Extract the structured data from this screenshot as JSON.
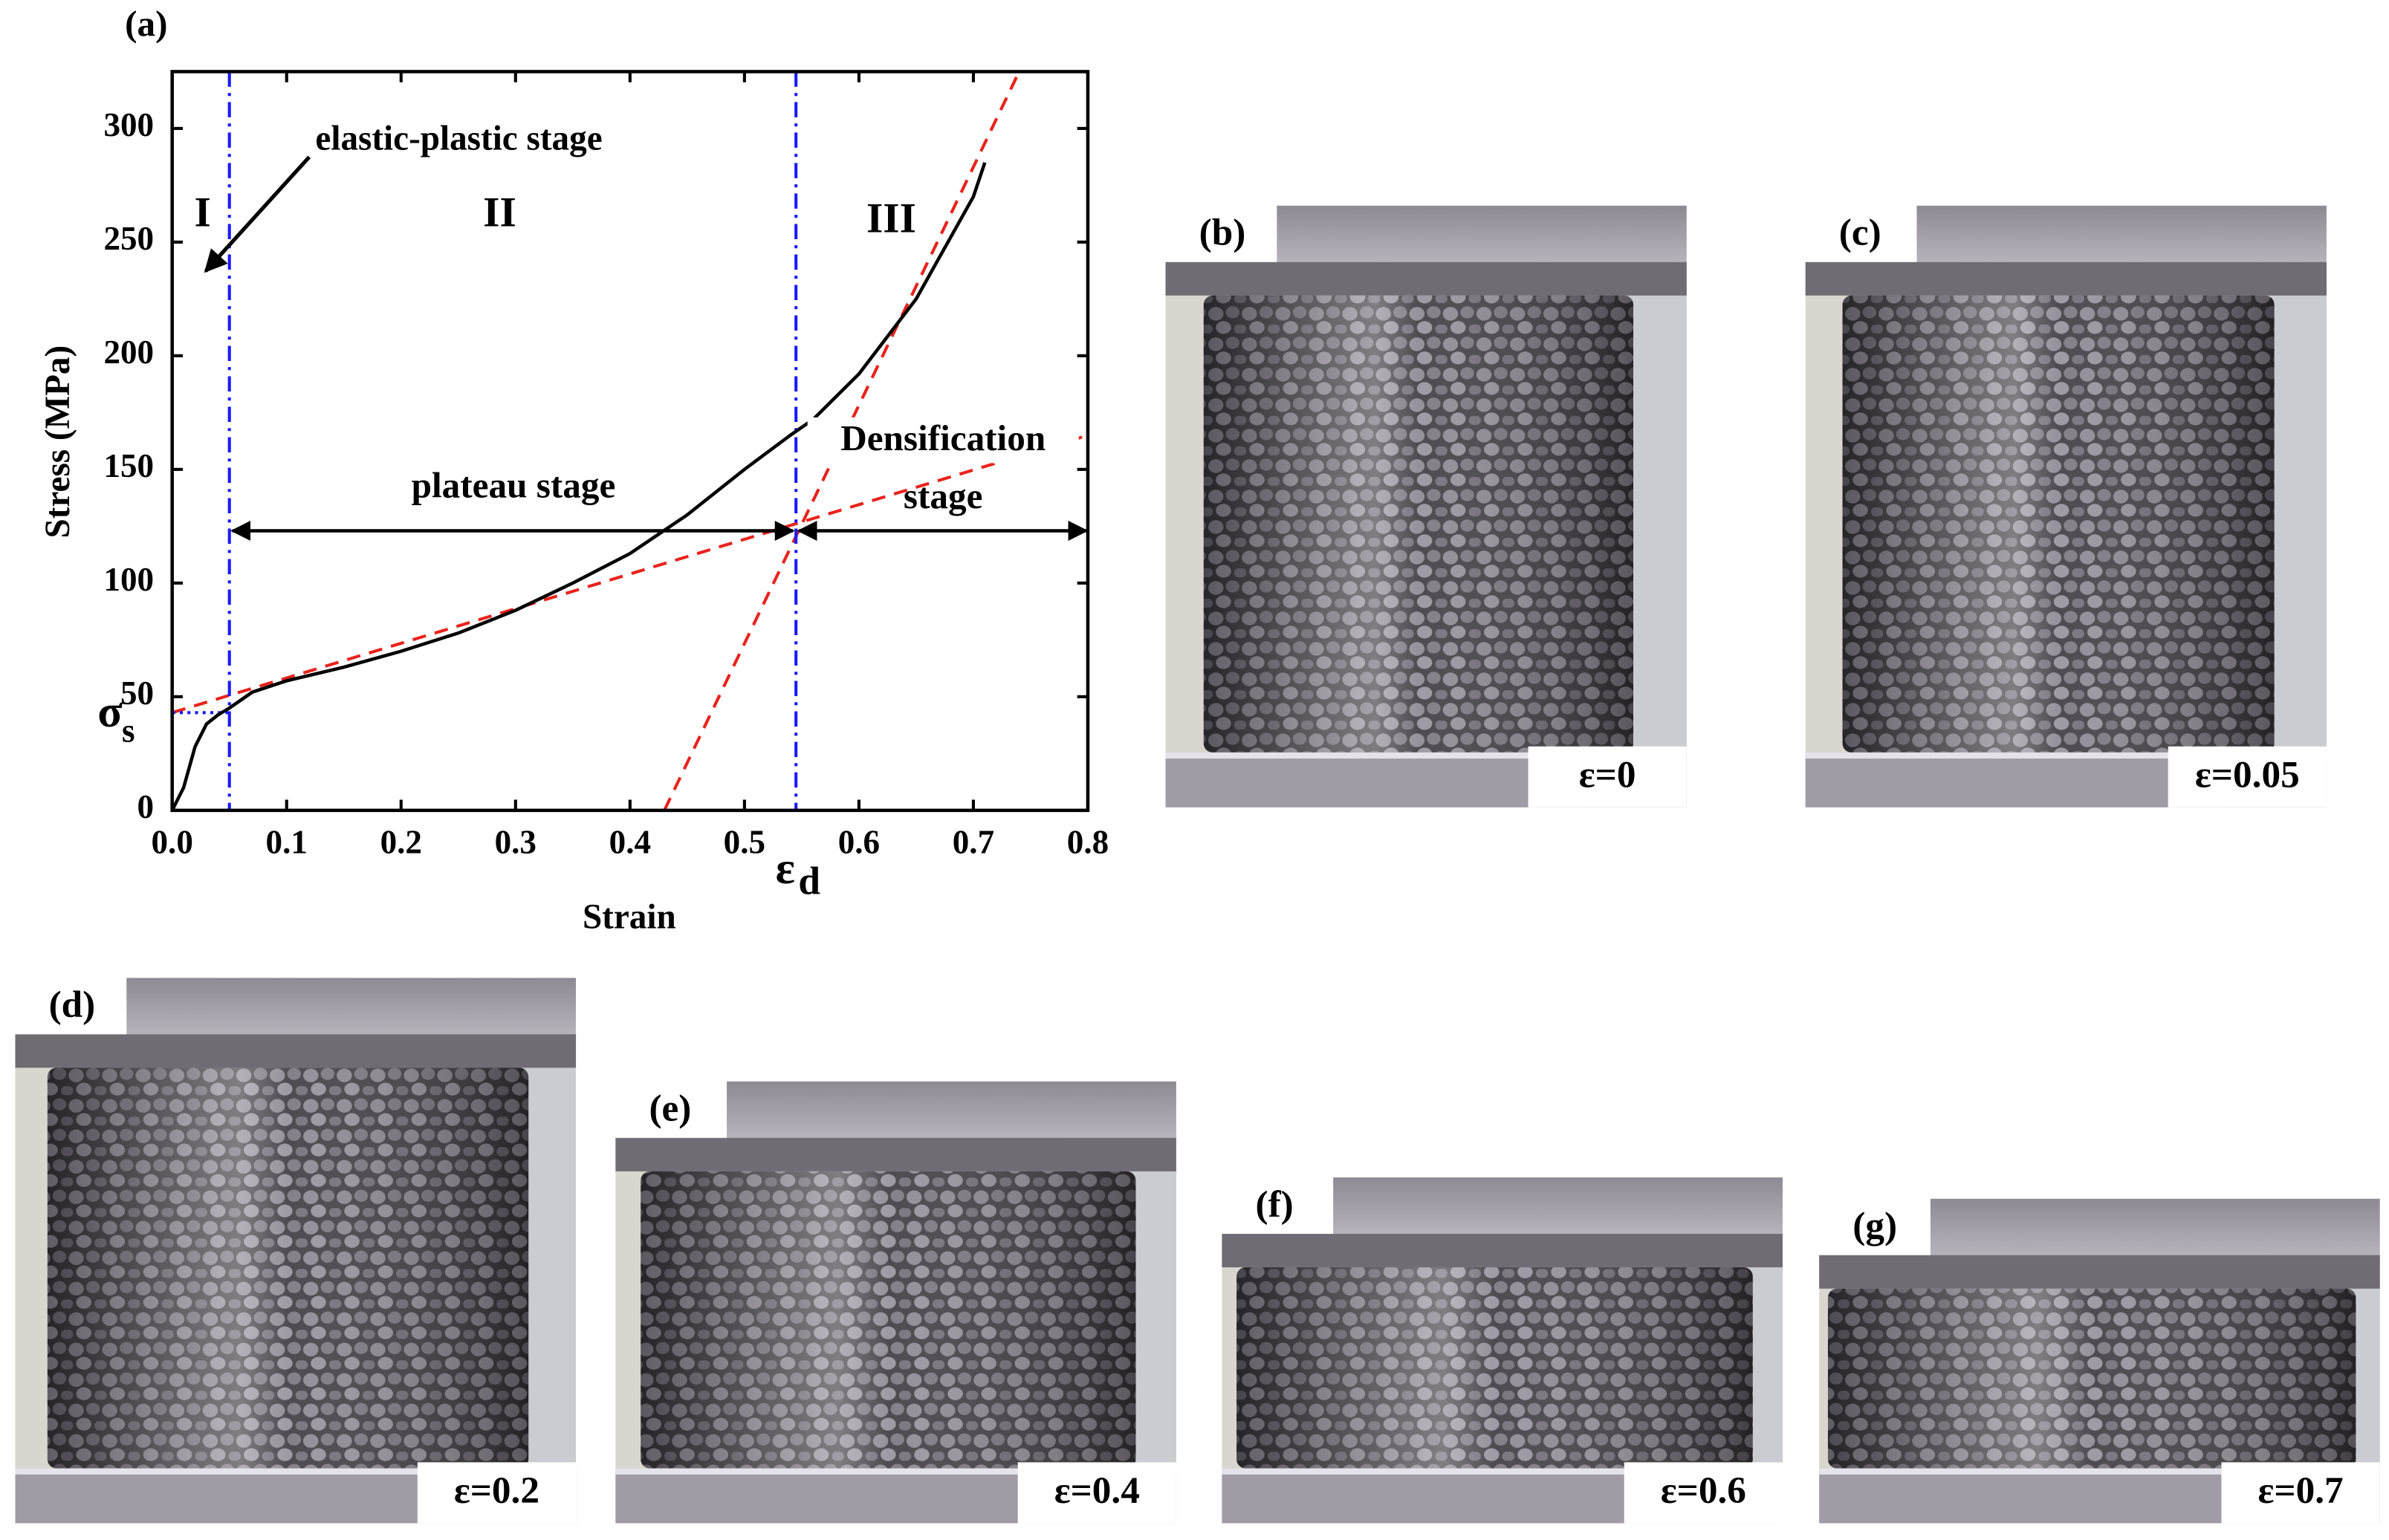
{
  "chart_data": {
    "type": "line",
    "title": "(a)",
    "x_label": "Strain",
    "y_label": "Stress (MPa)",
    "xlim": [
      0,
      0.8
    ],
    "ylim": [
      0,
      325
    ],
    "xticks": [
      {
        "value": 0,
        "label": "0.0"
      },
      0.1,
      0.2,
      0.3,
      0.4,
      0.5,
      0.6,
      0.7,
      0.8
    ],
    "yticks": [
      0,
      50,
      100,
      150,
      200,
      250,
      300
    ],
    "series": [
      {
        "color": "#000000",
        "x": [
          0,
          0.01,
          0.02,
          0.03,
          0.04,
          0.05,
          0.07,
          0.1,
          0.15,
          0.2,
          0.25,
          0.3,
          0.35,
          0.4,
          0.45,
          0.5,
          0.54,
          0.56,
          0.6,
          0.65,
          0.7,
          0.71
        ],
        "values": [
          0,
          10,
          28,
          38,
          42,
          45,
          52,
          57,
          63,
          70,
          78,
          88,
          100,
          113,
          130,
          150,
          165,
          172,
          192,
          225,
          270,
          285
        ]
      }
    ],
    "fit_lines": [
      {
        "color": "#e8231c",
        "x": [
          0,
          0.8
        ],
        "values": [
          43,
          165
        ]
      },
      {
        "color": "#e8231c",
        "x": [
          0.43,
          0.74
        ],
        "values": [
          0,
          325
        ]
      }
    ],
    "stage_bounds": [
      0.05,
      0.545
    ],
    "stage_bound_color": "#1a1aff",
    "sigma_s": 43,
    "stage_arrow_y": 123,
    "annotations": {
      "elastic_plastic": "elastic-plastic stage",
      "stage_1": "I",
      "stage_2": "II",
      "stage_3": "III",
      "plateau": "plateau stage",
      "densification": [
        "Densification",
        "stage"
      ],
      "sigma": {
        "symbol": "σ",
        "sub": "s"
      },
      "epsilon": {
        "symbol": "ε",
        "sub": "d"
      }
    }
  },
  "panels": [
    {
      "label": "(b)",
      "strain": "ε=0"
    },
    {
      "label": "(c)",
      "strain": "ε=0.05"
    },
    {
      "label": "(d)",
      "strain": "ε=0.2"
    },
    {
      "label": "(e)",
      "strain": "ε=0.4"
    },
    {
      "label": "(f)",
      "strain": "ε=0.6"
    },
    {
      "label": "(g)",
      "strain": "ε=0.7"
    }
  ]
}
